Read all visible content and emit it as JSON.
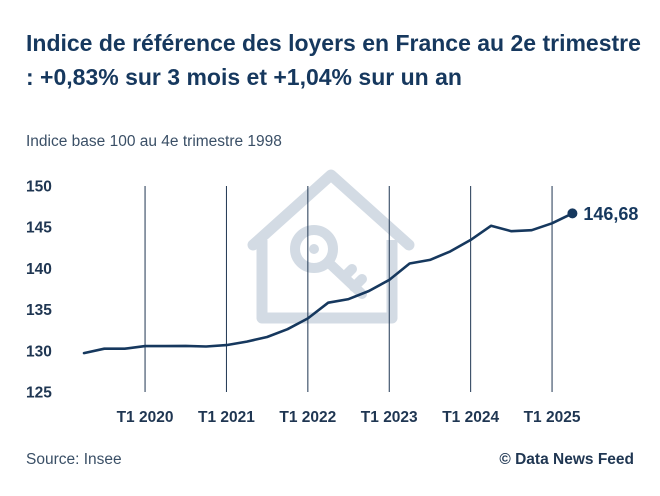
{
  "header": {
    "title": "Indice de référence des loyers en France au 2e trimestre : +0,83% sur 3 mois et +1,04% sur un an",
    "subtitle": "Indice base 100 au 4e trimestre 1998"
  },
  "footer": {
    "source": "Source: Insee",
    "copyright": "© Data News Feed"
  },
  "colors": {
    "line": "#16385e",
    "gridline": "#1f3652",
    "watermark": "#d3dbe4"
  },
  "watermark": {
    "icon": "house-key-icon"
  },
  "chart_data": {
    "type": "line",
    "title": "Indice de référence des loyers en France au 2e trimestre : +0,83% sur 3 mois et +1,04% sur un an",
    "subtitle": "Indice base 100 au 4e trimestre 1998",
    "xlabel": "",
    "ylabel": "",
    "ylim": [
      125,
      150
    ],
    "y_ticks": [
      150,
      145,
      140,
      135,
      130,
      125
    ],
    "x_ticks": [
      "T1 2020",
      "T1 2021",
      "T1 2022",
      "T1 2023",
      "T1 2024",
      "T1 2025"
    ],
    "grid": "vertical lines at each T1",
    "end_label": "146,68",
    "series": [
      {
        "x": [
          "T2 2019",
          "T3 2019",
          "T4 2019",
          "T1 2020",
          "T2 2020",
          "T3 2020",
          "T4 2020",
          "T1 2021",
          "T2 2021",
          "T3 2021",
          "T4 2021",
          "T1 2022",
          "T2 2022",
          "T3 2022",
          "T4 2022",
          "T1 2023",
          "T2 2023",
          "T3 2023",
          "T4 2023",
          "T1 2024",
          "T2 2024",
          "T3 2024",
          "T4 2024",
          "T1 2025",
          "T2 2025"
        ],
        "values": [
          129.72,
          130.25,
          130.26,
          130.57,
          130.57,
          130.59,
          130.52,
          130.69,
          131.12,
          131.67,
          132.62,
          133.93,
          135.84,
          136.27,
          137.26,
          138.61,
          140.59,
          141.03,
          142.06,
          143.46,
          145.17,
          144.51,
          144.64,
          145.47,
          146.68
        ]
      }
    ]
  }
}
